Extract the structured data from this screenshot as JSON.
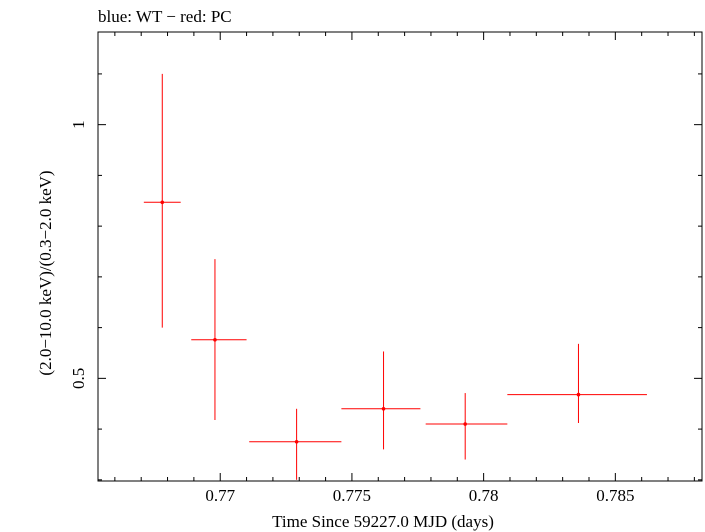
{
  "chart_data": {
    "type": "scatter",
    "title": "blue: WT − red: PC",
    "xlabel": "Time Since 59227.0 MJD (days)",
    "ylabel": "(2.0−10.0 keV)/(0.3−2.0 keV)",
    "xlim": [
      0.76536,
      0.78829
    ],
    "ylim": [
      0.2977,
      1.1826
    ],
    "x_ticks": [
      {
        "value": 0.77,
        "label": "0.77"
      },
      {
        "value": 0.775,
        "label": "0.775"
      },
      {
        "value": 0.78,
        "label": "0.78"
      },
      {
        "value": 0.785,
        "label": "0.785"
      }
    ],
    "y_ticks": [
      {
        "value": 0.5,
        "label": "0.5"
      },
      {
        "value": 1,
        "label": "1"
      }
    ],
    "series": [
      {
        "color": "#ff0000",
        "points": [
          {
            "x": 0.7678,
            "y": 0.847,
            "xerr": [
              0.7671,
              0.7685
            ],
            "yerr": [
              0.6,
              1.1
            ]
          },
          {
            "x": 0.7698,
            "y": 0.576,
            "xerr": [
              0.7689,
              0.771
            ],
            "yerr": [
              0.418,
              0.735
            ]
          },
          {
            "x": 0.7729,
            "y": 0.375,
            "xerr": [
              0.7711,
              0.7746
            ],
            "yerr": [
              0.3,
              0.44
            ]
          },
          {
            "x": 0.7762,
            "y": 0.44,
            "xerr": [
              0.7746,
              0.7776
            ],
            "yerr": [
              0.36,
              0.553
            ]
          },
          {
            "x": 0.7793,
            "y": 0.41,
            "xerr": [
              0.7778,
              0.7809
            ],
            "yerr": [
              0.34,
              0.471
            ]
          },
          {
            "x": 0.7836,
            "y": 0.468,
            "xerr": [
              0.7809,
              0.7862
            ],
            "yerr": [
              0.412,
              0.568
            ]
          }
        ]
      }
    ]
  }
}
